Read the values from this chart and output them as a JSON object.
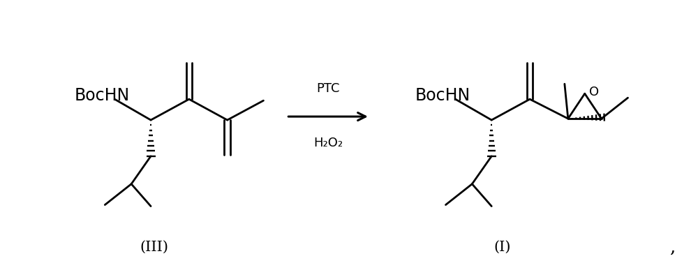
{
  "bg_color": "#ffffff",
  "line_color": "#000000",
  "line_width": 2.0,
  "arrow_color": "#000000",
  "text_color": "#000000",
  "label_III": "(III)",
  "label_I": "(I)",
  "reagent1": "PTC",
  "reagent2": "H₂O₂",
  "comma": ",",
  "font_size_label": 15,
  "font_size_reagent": 13,
  "font_size_boc": 17,
  "figsize": [
    10.0,
    3.77
  ],
  "dpi": 100
}
